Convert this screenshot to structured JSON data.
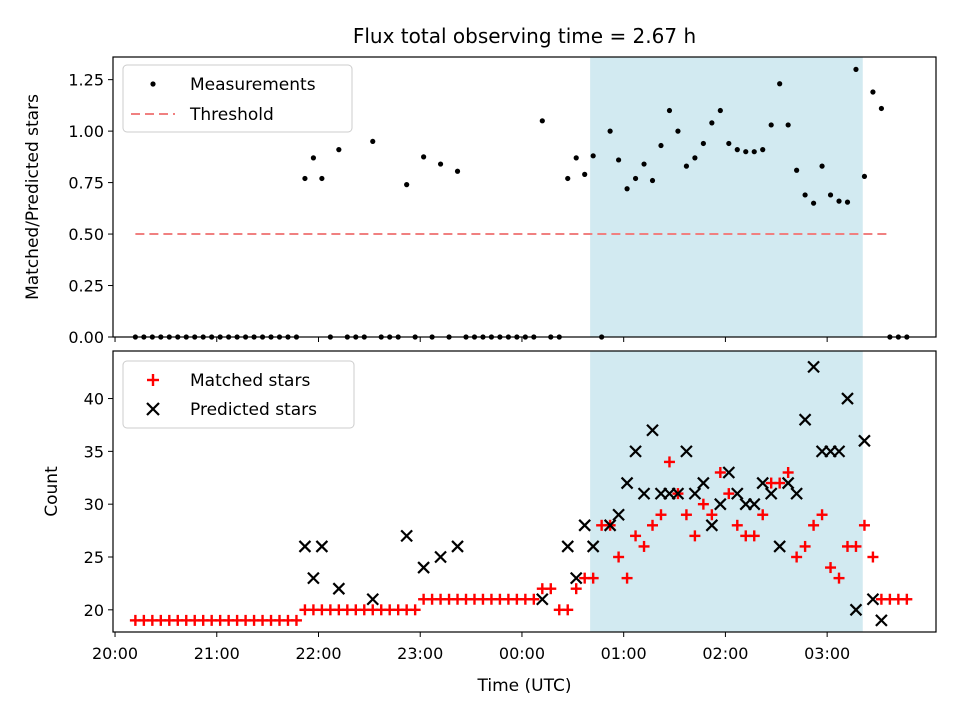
{
  "chart_data": [
    {
      "type": "scatter",
      "title": "Flux total observing time = 2.67 h",
      "ylabel": "Matched/Predicted stars",
      "xlabel": "",
      "ylim": [
        0,
        1.36
      ],
      "x_range_hours": [
        19.98,
        28.07
      ],
      "highlight_span_hours": [
        24.67,
        27.35
      ],
      "yticks": [
        "0.00",
        "0.25",
        "0.50",
        "0.75",
        "1.00",
        "1.25"
      ],
      "legend": {
        "placement": "top-left",
        "entries": [
          "Measurements",
          "Threshold"
        ]
      },
      "threshold": {
        "name": "Threshold",
        "y": 0.5,
        "x_start": "20:12",
        "x_end": "03:37",
        "color": "#f08080"
      },
      "series": [
        {
          "name": "Measurements",
          "marker": "dot",
          "color": "#000000",
          "points": [
            [
              "20:12",
              0
            ],
            [
              "20:17",
              0
            ],
            [
              "20:22",
              0
            ],
            [
              "20:27",
              0
            ],
            [
              "20:32",
              0
            ],
            [
              "20:37",
              0
            ],
            [
              "20:42",
              0
            ],
            [
              "20:47",
              0
            ],
            [
              "20:52",
              0
            ],
            [
              "20:57",
              0
            ],
            [
              "21:02",
              0
            ],
            [
              "21:07",
              0
            ],
            [
              "21:12",
              0
            ],
            [
              "21:17",
              0
            ],
            [
              "21:22",
              0
            ],
            [
              "21:27",
              0
            ],
            [
              "21:32",
              0
            ],
            [
              "21:37",
              0
            ],
            [
              "21:42",
              0
            ],
            [
              "21:47",
              0
            ],
            [
              "21:52",
              0.77
            ],
            [
              "21:57",
              0.87
            ],
            [
              "22:02",
              0.77
            ],
            [
              "22:07",
              0
            ],
            [
              "22:12",
              0.91
            ],
            [
              "22:17",
              0
            ],
            [
              "22:22",
              0
            ],
            [
              "22:27",
              0
            ],
            [
              "22:32",
              0.95
            ],
            [
              "22:37",
              0
            ],
            [
              "22:42",
              0
            ],
            [
              "22:47",
              0
            ],
            [
              "22:52",
              0.74
            ],
            [
              "22:57",
              0
            ],
            [
              "23:02",
              0.875
            ],
            [
              "23:07",
              0
            ],
            [
              "23:12",
              0.84
            ],
            [
              "23:17",
              0
            ],
            [
              "23:22",
              0.805
            ],
            [
              "23:27",
              0
            ],
            [
              "23:32",
              0
            ],
            [
              "23:37",
              0
            ],
            [
              "23:42",
              0
            ],
            [
              "23:47",
              0
            ],
            [
              "23:52",
              0
            ],
            [
              "23:57",
              0
            ],
            [
              "00:02",
              0
            ],
            [
              "00:07",
              0
            ],
            [
              "00:12",
              1.05
            ],
            [
              "00:17",
              0
            ],
            [
              "00:22",
              0
            ],
            [
              "00:27",
              0.77
            ],
            [
              "00:32",
              0.87
            ],
            [
              "00:37",
              0.79
            ],
            [
              "00:42",
              0.88
            ],
            [
              "00:47",
              0
            ],
            [
              "00:52",
              1.0
            ],
            [
              "00:57",
              0.86
            ],
            [
              "01:02",
              0.72
            ],
            [
              "01:07",
              0.77
            ],
            [
              "01:12",
              0.84
            ],
            [
              "01:17",
              0.76
            ],
            [
              "01:22",
              0.93
            ],
            [
              "01:27",
              1.1
            ],
            [
              "01:32",
              1.0
            ],
            [
              "01:37",
              0.83
            ],
            [
              "01:42",
              0.87
            ],
            [
              "01:47",
              0.94
            ],
            [
              "01:52",
              1.04
            ],
            [
              "01:57",
              1.1
            ],
            [
              "02:02",
              0.94
            ],
            [
              "02:07",
              0.91
            ],
            [
              "02:12",
              0.9
            ],
            [
              "02:17",
              0.9
            ],
            [
              "02:22",
              0.91
            ],
            [
              "02:27",
              1.03
            ],
            [
              "02:32",
              1.23
            ],
            [
              "02:37",
              1.03
            ],
            [
              "02:42",
              0.81
            ],
            [
              "02:47",
              0.69
            ],
            [
              "02:52",
              0.65
            ],
            [
              "02:57",
              0.83
            ],
            [
              "03:02",
              0.69
            ],
            [
              "03:07",
              0.66
            ],
            [
              "03:12",
              0.655
            ],
            [
              "03:17",
              1.3
            ],
            [
              "03:22",
              0.78
            ],
            [
              "03:27",
              1.19
            ],
            [
              "03:32",
              1.11
            ],
            [
              "03:37",
              0
            ],
            [
              "03:42",
              0
            ],
            [
              "03:47",
              0
            ]
          ]
        }
      ]
    },
    {
      "type": "scatter",
      "title": "",
      "ylabel": "Count",
      "xlabel": "Time (UTC)",
      "ylim": [
        17.9,
        44.5
      ],
      "x_range_hours": [
        19.98,
        28.07
      ],
      "highlight_span_hours": [
        24.67,
        27.35
      ],
      "yticks": [
        "20",
        "25",
        "30",
        "35",
        "40"
      ],
      "xticks": [
        "20:00",
        "21:00",
        "22:00",
        "23:00",
        "00:00",
        "01:00",
        "02:00",
        "03:00"
      ],
      "legend": {
        "placement": "top-left",
        "entries": [
          "Matched stars",
          "Predicted stars"
        ]
      },
      "series": [
        {
          "name": "Matched stars",
          "marker": "plus",
          "color": "#ff0000",
          "points": [
            [
              "20:12",
              19
            ],
            [
              "20:17",
              19
            ],
            [
              "20:22",
              19
            ],
            [
              "20:27",
              19
            ],
            [
              "20:32",
              19
            ],
            [
              "20:37",
              19
            ],
            [
              "20:42",
              19
            ],
            [
              "20:47",
              19
            ],
            [
              "20:52",
              19
            ],
            [
              "20:57",
              19
            ],
            [
              "21:02",
              19
            ],
            [
              "21:07",
              19
            ],
            [
              "21:12",
              19
            ],
            [
              "21:17",
              19
            ],
            [
              "21:22",
              19
            ],
            [
              "21:27",
              19
            ],
            [
              "21:32",
              19
            ],
            [
              "21:37",
              19
            ],
            [
              "21:42",
              19
            ],
            [
              "21:47",
              19
            ],
            [
              "21:52",
              20
            ],
            [
              "21:57",
              20
            ],
            [
              "22:02",
              20
            ],
            [
              "22:07",
              20
            ],
            [
              "22:12",
              20
            ],
            [
              "22:17",
              20
            ],
            [
              "22:22",
              20
            ],
            [
              "22:27",
              20
            ],
            [
              "22:32",
              20
            ],
            [
              "22:37",
              20
            ],
            [
              "22:42",
              20
            ],
            [
              "22:47",
              20
            ],
            [
              "22:52",
              20
            ],
            [
              "22:57",
              20
            ],
            [
              "23:02",
              21
            ],
            [
              "23:07",
              21
            ],
            [
              "23:12",
              21
            ],
            [
              "23:17",
              21
            ],
            [
              "23:22",
              21
            ],
            [
              "23:27",
              21
            ],
            [
              "23:32",
              21
            ],
            [
              "23:37",
              21
            ],
            [
              "23:42",
              21
            ],
            [
              "23:47",
              21
            ],
            [
              "23:52",
              21
            ],
            [
              "23:57",
              21
            ],
            [
              "00:02",
              21
            ],
            [
              "00:07",
              21
            ],
            [
              "00:12",
              22
            ],
            [
              "00:17",
              22
            ],
            [
              "00:22",
              20
            ],
            [
              "00:27",
              20
            ],
            [
              "00:32",
              22
            ],
            [
              "00:37",
              23
            ],
            [
              "00:42",
              23
            ],
            [
              "00:47",
              28
            ],
            [
              "00:52",
              28
            ],
            [
              "00:57",
              25
            ],
            [
              "01:02",
              23
            ],
            [
              "01:07",
              27
            ],
            [
              "01:12",
              26
            ],
            [
              "01:17",
              28
            ],
            [
              "01:22",
              29
            ],
            [
              "01:27",
              34
            ],
            [
              "01:32",
              31
            ],
            [
              "01:37",
              29
            ],
            [
              "01:42",
              27
            ],
            [
              "01:47",
              30
            ],
            [
              "01:52",
              29
            ],
            [
              "01:57",
              33
            ],
            [
              "02:02",
              31
            ],
            [
              "02:07",
              28
            ],
            [
              "02:12",
              27
            ],
            [
              "02:17",
              27
            ],
            [
              "02:22",
              29
            ],
            [
              "02:27",
              32
            ],
            [
              "02:32",
              32
            ],
            [
              "02:37",
              33
            ],
            [
              "02:42",
              25
            ],
            [
              "02:47",
              26
            ],
            [
              "02:52",
              28
            ],
            [
              "02:57",
              29
            ],
            [
              "03:02",
              24
            ],
            [
              "03:07",
              23
            ],
            [
              "03:12",
              26
            ],
            [
              "03:17",
              26
            ],
            [
              "03:22",
              28
            ],
            [
              "03:27",
              25
            ],
            [
              "03:32",
              21
            ],
            [
              "03:37",
              21
            ],
            [
              "03:42",
              21
            ],
            [
              "03:47",
              21
            ]
          ]
        },
        {
          "name": "Predicted stars",
          "marker": "x",
          "color": "#000000",
          "points": [
            [
              "21:52",
              26
            ],
            [
              "21:57",
              23
            ],
            [
              "22:02",
              26
            ],
            [
              "22:12",
              22
            ],
            [
              "22:32",
              21
            ],
            [
              "22:52",
              27
            ],
            [
              "23:02",
              24
            ],
            [
              "23:12",
              25
            ],
            [
              "23:22",
              26
            ],
            [
              "00:12",
              21
            ],
            [
              "00:27",
              26
            ],
            [
              "00:32",
              23
            ],
            [
              "00:37",
              28
            ],
            [
              "00:42",
              26
            ],
            [
              "00:52",
              28
            ],
            [
              "00:57",
              29
            ],
            [
              "01:02",
              32
            ],
            [
              "01:07",
              35
            ],
            [
              "01:12",
              31
            ],
            [
              "01:17",
              37
            ],
            [
              "01:22",
              31
            ],
            [
              "01:27",
              31
            ],
            [
              "01:32",
              31
            ],
            [
              "01:37",
              35
            ],
            [
              "01:42",
              31
            ],
            [
              "01:47",
              32
            ],
            [
              "01:52",
              28
            ],
            [
              "01:57",
              30
            ],
            [
              "02:02",
              33
            ],
            [
              "02:07",
              31
            ],
            [
              "02:12",
              30
            ],
            [
              "02:17",
              30
            ],
            [
              "02:22",
              32
            ],
            [
              "02:27",
              31
            ],
            [
              "02:32",
              26
            ],
            [
              "02:37",
              32
            ],
            [
              "02:42",
              31
            ],
            [
              "02:47",
              38
            ],
            [
              "02:52",
              43
            ],
            [
              "02:57",
              35
            ],
            [
              "03:02",
              35
            ],
            [
              "03:07",
              35
            ],
            [
              "03:12",
              40
            ],
            [
              "03:17",
              20
            ],
            [
              "03:22",
              36
            ],
            [
              "03:27",
              21
            ],
            [
              "03:32",
              19
            ]
          ]
        }
      ]
    }
  ]
}
